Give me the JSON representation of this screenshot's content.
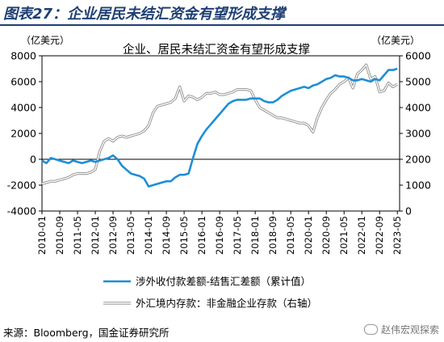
{
  "figure": {
    "label": "图表27：企业居民未结汇资金有望形成支撑",
    "source": "来源：Bloomberg，国金证券研究所",
    "watermark": "赵伟宏观探索"
  },
  "chart_data": {
    "type": "line",
    "title": "企业、居民未结汇资金有望形成支撑",
    "left_unit": "（亿美元）",
    "right_unit": "（亿美元）",
    "ylim_left": [
      -4000,
      8000
    ],
    "yticks_left": [
      -4000,
      -2000,
      0,
      2000,
      4000,
      6000,
      8000
    ],
    "ylim_right": [
      0,
      6000
    ],
    "yticks_right": [
      0,
      1000,
      2000,
      3000,
      4000,
      5000,
      6000
    ],
    "xlim": [
      "2010-01",
      "2023-06"
    ],
    "xtick_labels": [
      "2010-01",
      "2010-09",
      "2011-05",
      "2012-01",
      "2012-09",
      "2013-05",
      "2014-01",
      "2014-09",
      "2015-05",
      "2016-01",
      "2016-09",
      "2017-05",
      "2018-01",
      "2018-09",
      "2019-05",
      "2020-01",
      "2020-09",
      "2021-05",
      "2022-01",
      "2022-09",
      "2023-05"
    ],
    "grid": false,
    "legend_position": "bottom",
    "series": [
      {
        "name": "涉外收付款差额-结售汇差额（累计值）",
        "axis": "left",
        "color": "#1f8ed6",
        "points": [
          [
            "2010-01",
            -100
          ],
          [
            "2010-03",
            -300
          ],
          [
            "2010-05",
            100
          ],
          [
            "2010-07",
            0
          ],
          [
            "2010-09",
            -100
          ],
          [
            "2010-11",
            -200
          ],
          [
            "2011-01",
            -300
          ],
          [
            "2011-03",
            -100
          ],
          [
            "2011-05",
            -200
          ],
          [
            "2011-07",
            -300
          ],
          [
            "2011-09",
            -200
          ],
          [
            "2011-11",
            -100
          ],
          [
            "2012-01",
            -200
          ],
          [
            "2012-03",
            -100
          ],
          [
            "2012-05",
            0
          ],
          [
            "2012-07",
            100
          ],
          [
            "2012-09",
            300
          ],
          [
            "2012-11",
            0
          ],
          [
            "2013-01",
            -500
          ],
          [
            "2013-03",
            -800
          ],
          [
            "2013-05",
            -1100
          ],
          [
            "2013-07",
            -1200
          ],
          [
            "2013-09",
            -1300
          ],
          [
            "2013-11",
            -1500
          ],
          [
            "2014-01",
            -2100
          ],
          [
            "2014-03",
            -2000
          ],
          [
            "2014-05",
            -1900
          ],
          [
            "2014-07",
            -1800
          ],
          [
            "2014-09",
            -1700
          ],
          [
            "2014-11",
            -1700
          ],
          [
            "2015-01",
            -1400
          ],
          [
            "2015-03",
            -1200
          ],
          [
            "2015-05",
            -1200
          ],
          [
            "2015-07",
            -1100
          ],
          [
            "2015-09",
            100
          ],
          [
            "2015-11",
            1200
          ],
          [
            "2016-01",
            1800
          ],
          [
            "2016-03",
            2300
          ],
          [
            "2016-05",
            2700
          ],
          [
            "2016-07",
            3100
          ],
          [
            "2016-09",
            3500
          ],
          [
            "2016-11",
            3900
          ],
          [
            "2017-01",
            4300
          ],
          [
            "2017-03",
            4500
          ],
          [
            "2017-05",
            4600
          ],
          [
            "2017-07",
            4600
          ],
          [
            "2017-09",
            4600
          ],
          [
            "2017-11",
            4700
          ],
          [
            "2018-01",
            4700
          ],
          [
            "2018-03",
            4700
          ],
          [
            "2018-05",
            4500
          ],
          [
            "2018-07",
            4400
          ],
          [
            "2018-09",
            4400
          ],
          [
            "2018-11",
            4600
          ],
          [
            "2019-01",
            4900
          ],
          [
            "2019-03",
            5100
          ],
          [
            "2019-05",
            5300
          ],
          [
            "2019-07",
            5400
          ],
          [
            "2019-09",
            5500
          ],
          [
            "2019-11",
            5600
          ],
          [
            "2020-01",
            5500
          ],
          [
            "2020-03",
            5700
          ],
          [
            "2020-05",
            5800
          ],
          [
            "2020-07",
            6000
          ],
          [
            "2020-09",
            6200
          ],
          [
            "2020-11",
            6300
          ],
          [
            "2021-01",
            6500
          ],
          [
            "2021-03",
            6400
          ],
          [
            "2021-05",
            6400
          ],
          [
            "2021-07",
            6300
          ],
          [
            "2021-09",
            6100
          ],
          [
            "2021-11",
            6100
          ],
          [
            "2022-01",
            6200
          ],
          [
            "2022-03",
            6100
          ],
          [
            "2022-05",
            6000
          ],
          [
            "2022-07",
            6200
          ],
          [
            "2022-09",
            6100
          ],
          [
            "2022-11",
            6500
          ],
          [
            "2023-01",
            6900
          ],
          [
            "2023-03",
            6900
          ],
          [
            "2023-05",
            7000
          ]
        ]
      },
      {
        "name": "外汇境内存款：非金融企业存款（右轴）",
        "axis": "right",
        "color": "#b4b4b4",
        "points": [
          [
            "2010-01",
            1050
          ],
          [
            "2010-03",
            1100
          ],
          [
            "2010-05",
            1150
          ],
          [
            "2010-07",
            1150
          ],
          [
            "2010-09",
            1200
          ],
          [
            "2010-11",
            1250
          ],
          [
            "2011-01",
            1300
          ],
          [
            "2011-03",
            1400
          ],
          [
            "2011-05",
            1450
          ],
          [
            "2011-07",
            1450
          ],
          [
            "2011-09",
            1450
          ],
          [
            "2011-11",
            1500
          ],
          [
            "2012-01",
            1600
          ],
          [
            "2012-03",
            2300
          ],
          [
            "2012-05",
            2700
          ],
          [
            "2012-07",
            2800
          ],
          [
            "2012-09",
            2700
          ],
          [
            "2012-11",
            2850
          ],
          [
            "2013-01",
            2900
          ],
          [
            "2013-03",
            2850
          ],
          [
            "2013-05",
            2900
          ],
          [
            "2013-07",
            2950
          ],
          [
            "2013-09",
            3000
          ],
          [
            "2013-11",
            3100
          ],
          [
            "2014-01",
            3300
          ],
          [
            "2014-03",
            3800
          ],
          [
            "2014-05",
            4050
          ],
          [
            "2014-07",
            4100
          ],
          [
            "2014-09",
            4150
          ],
          [
            "2014-11",
            4200
          ],
          [
            "2015-01",
            4350
          ],
          [
            "2015-03",
            4800
          ],
          [
            "2015-05",
            4250
          ],
          [
            "2015-07",
            4450
          ],
          [
            "2015-09",
            4400
          ],
          [
            "2015-11",
            4300
          ],
          [
            "2016-01",
            4400
          ],
          [
            "2016-03",
            4550
          ],
          [
            "2016-05",
            4550
          ],
          [
            "2016-07",
            4600
          ],
          [
            "2016-09",
            4500
          ],
          [
            "2016-11",
            4500
          ],
          [
            "2017-01",
            4550
          ],
          [
            "2017-03",
            4600
          ],
          [
            "2017-05",
            4700
          ],
          [
            "2017-07",
            4700
          ],
          [
            "2017-09",
            4700
          ],
          [
            "2017-11",
            4650
          ],
          [
            "2018-01",
            4300
          ],
          [
            "2018-03",
            4000
          ],
          [
            "2018-05",
            3900
          ],
          [
            "2018-07",
            3800
          ],
          [
            "2018-09",
            3700
          ],
          [
            "2018-11",
            3600
          ],
          [
            "2019-01",
            3600
          ],
          [
            "2019-03",
            3550
          ],
          [
            "2019-05",
            3500
          ],
          [
            "2019-07",
            3450
          ],
          [
            "2019-09",
            3400
          ],
          [
            "2019-11",
            3400
          ],
          [
            "2020-01",
            3300
          ],
          [
            "2020-03",
            3050
          ],
          [
            "2020-05",
            3600
          ],
          [
            "2020-07",
            4000
          ],
          [
            "2020-09",
            4300
          ],
          [
            "2020-11",
            4550
          ],
          [
            "2021-01",
            4700
          ],
          [
            "2021-03",
            4900
          ],
          [
            "2021-05",
            5000
          ],
          [
            "2021-07",
            5150
          ],
          [
            "2021-09",
            4750
          ],
          [
            "2021-11",
            5300
          ],
          [
            "2022-01",
            5450
          ],
          [
            "2022-03",
            5650
          ],
          [
            "2022-05",
            5100
          ],
          [
            "2022-07",
            5200
          ],
          [
            "2022-09",
            4600
          ],
          [
            "2022-11",
            4650
          ],
          [
            "2023-01",
            4950
          ],
          [
            "2023-03",
            4800
          ],
          [
            "2023-05",
            4900
          ]
        ]
      }
    ]
  }
}
